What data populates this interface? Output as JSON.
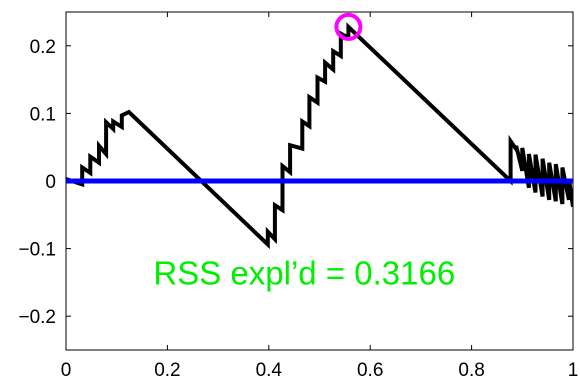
{
  "chart_data": {
    "type": "line",
    "title": "",
    "xlabel": "",
    "ylabel": "",
    "xlim": [
      0,
      1
    ],
    "ylim": [
      -0.25,
      0.25
    ],
    "xticks": [
      0,
      0.2,
      0.4,
      0.6,
      0.8,
      1
    ],
    "yticks": [
      -0.2,
      -0.1,
      0,
      0.1,
      0.2
    ],
    "xtick_labels": [
      "0",
      "0.2",
      "0.4",
      "0.6",
      "0.8",
      "1"
    ],
    "ytick_labels": [
      "−0.2",
      "−0.1",
      "0",
      "0.1",
      "0.2"
    ],
    "grid": false,
    "series": [
      {
        "color": "#000000",
        "x": [
          0.0,
          0.032,
          0.032,
          0.048,
          0.048,
          0.065,
          0.065,
          0.079,
          0.079,
          0.093,
          0.093,
          0.11,
          0.11,
          0.124,
          0.398,
          0.398,
          0.412,
          0.412,
          0.427,
          0.427,
          0.442,
          0.442,
          0.466,
          0.466,
          0.48,
          0.48,
          0.496,
          0.496,
          0.511,
          0.511,
          0.527,
          0.527,
          0.542,
          0.542,
          0.557,
          0.557,
          0.877,
          0.877,
          0.888,
          0.888,
          0.9,
          0.9,
          0.913,
          0.913,
          0.926,
          0.926,
          0.94,
          0.94,
          0.953,
          0.953,
          0.966,
          0.966,
          0.979,
          0.979,
          0.992,
          0.992,
          1.0
        ],
        "y": [
          0.003,
          -0.005,
          0.02,
          0.012,
          0.036,
          0.027,
          0.052,
          0.04,
          0.087,
          0.077,
          0.088,
          0.08,
          0.097,
          0.102,
          -0.094,
          -0.075,
          -0.086,
          -0.036,
          -0.043,
          0.022,
          0.013,
          0.053,
          0.048,
          0.088,
          0.081,
          0.124,
          0.116,
          0.153,
          0.147,
          0.175,
          0.165,
          0.192,
          0.185,
          0.218,
          0.212,
          0.228,
          0.0,
          0.059,
          0.047,
          0.052,
          0.015,
          0.049,
          -0.01,
          0.04,
          -0.017,
          0.039,
          -0.023,
          0.033,
          -0.028,
          0.027,
          -0.03,
          0.025,
          -0.034,
          0.02,
          -0.028,
          0.003,
          -0.038
        ]
      },
      {
        "color": "#0000ff",
        "x": [
          0,
          1
        ],
        "y": [
          0,
          0
        ]
      }
    ],
    "marker": {
      "x": 0.557,
      "y": 0.228,
      "color": "#ff00ff"
    },
    "annotation": {
      "text": "RSS expl’d = 0.3166",
      "color": "#00ee00"
    }
  }
}
